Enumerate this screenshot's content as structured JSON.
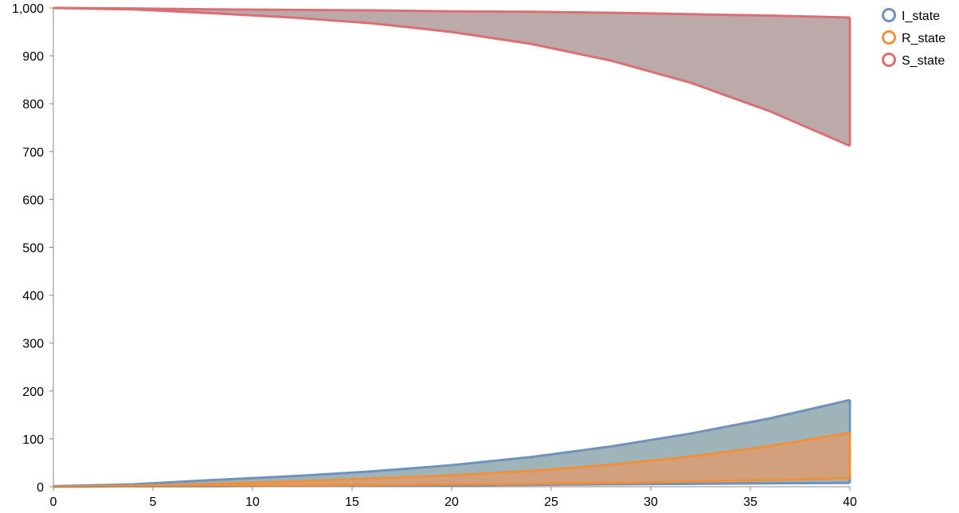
{
  "chart_data": {
    "type": "area",
    "x": [
      0,
      4,
      8,
      12,
      16,
      20,
      24,
      28,
      32,
      36,
      40
    ],
    "xlim": [
      0,
      40
    ],
    "ylim": [
      0,
      1000
    ],
    "x_ticks": [
      "0",
      "5",
      "10",
      "15",
      "20",
      "25",
      "30",
      "35",
      "40"
    ],
    "y_ticks": [
      "0",
      "100",
      "200",
      "300",
      "400",
      "500",
      "600",
      "700",
      "800",
      "900",
      "1,000"
    ],
    "grid": false,
    "legend_position": "top-right",
    "series": [
      {
        "name": "I_state",
        "color": "#6f91bd",
        "fill": "#9fb4b8",
        "lower": [
          0,
          1,
          1,
          2,
          2,
          3,
          4,
          5,
          6,
          7,
          8
        ],
        "upper": [
          1,
          5,
          14,
          22,
          32,
          45,
          62,
          84,
          111,
          143,
          181
        ]
      },
      {
        "name": "R_state",
        "color": "#f0903a",
        "fill": "#d2a07c",
        "lower": [
          0,
          1,
          2,
          3,
          4,
          5,
          6,
          8,
          11,
          14,
          18
        ],
        "upper": [
          0,
          2,
          6,
          11,
          17,
          24,
          33,
          46,
          63,
          85,
          113
        ]
      },
      {
        "name": "S_state",
        "color": "#db6f73",
        "fill": "#bcaaab",
        "lower": [
          1000,
          997,
          989,
          980,
          968,
          950,
          925,
          890,
          844,
          784,
          712
        ],
        "upper": [
          1000,
          999,
          997,
          996,
          995,
          993,
          992,
          990,
          987,
          984,
          980
        ]
      }
    ],
    "legend": {
      "I_state": "I_state",
      "R_state": "R_state",
      "S_state": "S_state"
    }
  }
}
